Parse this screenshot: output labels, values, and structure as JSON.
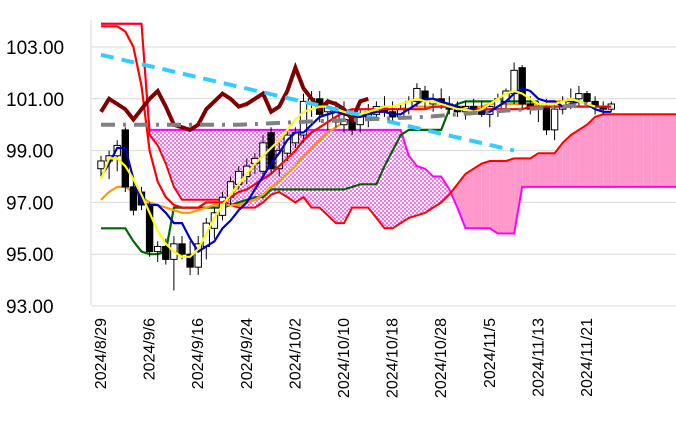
{
  "chart_data": {
    "type": "line",
    "title": "",
    "xlabel": "",
    "ylabel": "",
    "ylim": [
      93,
      104.3
    ],
    "y_ticks": [
      "103.00",
      "101.00",
      "99.00",
      "97.00",
      "95.00",
      "93.00"
    ],
    "y_tick_values": [
      103,
      101,
      99,
      97,
      95,
      93
    ],
    "x_tick_labels": [
      "2024/8/29",
      "2024/9/6",
      "2024/9/16",
      "2024/9/24",
      "2024/10/2",
      "2024/10/10",
      "2024/10/18",
      "2024/10/28",
      "2024/11/5",
      "2024/11/13",
      "2024/11/21"
    ],
    "x_tick_index": [
      0,
      6,
      12,
      18,
      24,
      30,
      36,
      42,
      48,
      54,
      60
    ],
    "grid": "horizontal",
    "legend": "none",
    "colors": {
      "candle_up": "#ffffff",
      "candle_down": "#000000",
      "conversion_line": "#0000cc",
      "base_line": "#ff0000",
      "lagging_line": "#800000",
      "ma_short": "#ffff00",
      "ma_mid": "#ff9900",
      "ma_long": "#006600",
      "trend_line": "#33ccff",
      "resistance_line": "#808080",
      "cloud_bull": "#ff99cc",
      "cloud_border": "#ff00ff"
    },
    "candles": [
      [
        98.3,
        98.8,
        98.0,
        98.6
      ],
      [
        98.6,
        99.0,
        97.9,
        98.8
      ],
      [
        98.8,
        99.4,
        98.2,
        99.2
      ],
      [
        99.8,
        99.9,
        97.4,
        97.6
      ],
      [
        97.6,
        97.9,
        96.5,
        96.7
      ],
      [
        97.4,
        97.6,
        96.7,
        96.9
      ],
      [
        96.9,
        97.0,
        94.9,
        95.1
      ],
      [
        95.1,
        95.5,
        94.7,
        95.3
      ],
      [
        95.3,
        95.6,
        94.6,
        94.8
      ],
      [
        94.8,
        95.7,
        93.6,
        95.4
      ],
      [
        95.4,
        95.7,
        94.8,
        95.0
      ],
      [
        95.0,
        95.5,
        94.2,
        94.5
      ],
      [
        94.5,
        95.7,
        94.2,
        95.4
      ],
      [
        95.3,
        96.4,
        94.8,
        96.2
      ],
      [
        96.0,
        96.8,
        95.6,
        96.6
      ],
      [
        96.5,
        97.4,
        96.3,
        97.2
      ],
      [
        97.2,
        98.0,
        96.9,
        97.8
      ],
      [
        97.7,
        98.4,
        97.5,
        98.2
      ],
      [
        98.0,
        98.7,
        97.7,
        98.4
      ],
      [
        98.5,
        98.9,
        98.1,
        98.7
      ],
      [
        98.2,
        99.6,
        97.9,
        99.3
      ],
      [
        99.7,
        99.9,
        98.1,
        98.3
      ],
      [
        98.3,
        99.3,
        98.0,
        99.0
      ],
      [
        98.9,
        99.8,
        98.6,
        99.6
      ],
      [
        99.3,
        99.9,
        99.1,
        99.7
      ],
      [
        99.6,
        101.2,
        99.3,
        100.9
      ],
      [
        100.8,
        101.3,
        100.3,
        101.0
      ],
      [
        101.0,
        101.3,
        100.1,
        100.4
      ],
      [
        100.5,
        101.0,
        99.8,
        100.7
      ],
      [
        100.1,
        100.9,
        99.9,
        100.6
      ],
      [
        100.0,
        100.9,
        99.7,
        100.2
      ],
      [
        100.2,
        100.6,
        99.6,
        99.8
      ],
      [
        100.0,
        100.6,
        99.7,
        100.4
      ],
      [
        100.3,
        100.8,
        99.9,
        100.5
      ],
      [
        100.4,
        100.9,
        100.2,
        100.7
      ],
      [
        100.7,
        101.1,
        100.3,
        100.5
      ],
      [
        100.5,
        100.9,
        100.1,
        100.3
      ],
      [
        100.3,
        100.8,
        100.2,
        100.6
      ],
      [
        100.6,
        101.1,
        100.4,
        100.9
      ],
      [
        100.9,
        101.6,
        100.7,
        101.4
      ],
      [
        101.3,
        101.5,
        100.6,
        100.9
      ],
      [
        100.8,
        101.2,
        100.5,
        101.0
      ],
      [
        101.0,
        101.4,
        100.6,
        100.8
      ],
      [
        100.8,
        101.1,
        100.4,
        100.6
      ],
      [
        100.6,
        100.9,
        100.3,
        100.5
      ],
      [
        100.5,
        100.9,
        100.2,
        100.7
      ],
      [
        100.7,
        101.0,
        100.4,
        100.6
      ],
      [
        100.6,
        100.9,
        100.3,
        100.4
      ],
      [
        100.4,
        100.8,
        99.9,
        100.7
      ],
      [
        100.6,
        101.2,
        100.3,
        101.0
      ],
      [
        100.9,
        101.4,
        100.5,
        101.3
      ],
      [
        101.2,
        102.4,
        100.8,
        102.1
      ],
      [
        102.2,
        102.3,
        100.6,
        100.8
      ],
      [
        100.8,
        101.1,
        100.4,
        100.6
      ],
      [
        100.6,
        100.9,
        100.1,
        100.7
      ],
      [
        100.7,
        101.0,
        99.6,
        99.8
      ],
      [
        99.8,
        100.8,
        99.4,
        100.6
      ],
      [
        100.6,
        101.1,
        100.4,
        100.9
      ],
      [
        100.9,
        101.4,
        100.6,
        101.0
      ],
      [
        101.0,
        101.5,
        100.7,
        101.2
      ],
      [
        101.2,
        101.3,
        100.7,
        100.9
      ],
      [
        100.9,
        101.1,
        100.4,
        100.7
      ],
      [
        100.7,
        100.9,
        100.4,
        100.6
      ],
      [
        100.6,
        100.9,
        100.5,
        100.8
      ]
    ],
    "conversion_line": [
      98.0,
      98.5,
      99.1,
      99.1,
      97.9,
      97.0,
      96.9,
      96.9,
      96.6,
      96.2,
      96.2,
      95.6,
      95.1,
      95.3,
      95.5,
      96.0,
      96.3,
      96.7,
      97.0,
      97.5,
      98.0,
      98.5,
      98.9,
      99.4,
      99.7,
      99.7,
      100.0,
      100.3,
      100.4,
      100.5,
      100.4,
      100.3,
      100.3,
      100.4,
      100.5,
      100.5,
      100.4,
      100.4,
      100.6,
      100.8,
      101.0,
      101.0,
      100.9,
      100.8,
      100.7,
      100.6,
      100.6,
      100.5,
      100.5,
      100.7,
      100.9,
      101.2,
      101.4,
      101.3,
      101.0,
      100.9,
      100.9,
      100.7,
      100.8,
      100.9,
      100.8,
      100.6,
      100.5,
      100.5
    ],
    "base_line": [
      103.8,
      103.8,
      103.8,
      103.6,
      103.0,
      101.5,
      99.0,
      97.8,
      97.2,
      96.9,
      96.8,
      96.8,
      96.8,
      97.0,
      97.0,
      97.0,
      97.2,
      97.4,
      97.5,
      97.7,
      97.9,
      98.1,
      98.4,
      98.7,
      99.0,
      99.4,
      99.7,
      99.9,
      100.1,
      100.3,
      100.5,
      100.6,
      100.6,
      100.6,
      100.6,
      100.6,
      100.6,
      100.6,
      100.6,
      100.6,
      100.6,
      100.7,
      100.7,
      100.7,
      100.7,
      100.6,
      100.6,
      100.6,
      100.6,
      100.6,
      100.6,
      100.6,
      100.6,
      100.7,
      100.7,
      100.7,
      100.7,
      100.7,
      100.7,
      100.7,
      100.7,
      100.7,
      100.7,
      100.7
    ],
    "lagging_line": [
      100.5,
      101.0,
      100.8,
      100.6,
      100.2,
      100.6,
      101.0,
      101.3,
      100.7,
      100.0,
      99.9,
      99.8,
      100.0,
      100.6,
      100.9,
      101.2,
      101.0,
      100.7,
      100.8,
      101.0,
      101.2,
      100.5,
      100.7,
      101.3,
      102.2,
      101.4,
      101.0,
      100.6,
      100.9,
      100.8,
      100.6,
      100.2,
      100.9,
      101.0
    ],
    "ma_short": [
      97.9,
      98.7,
      98.7,
      98.4,
      97.9,
      97.3,
      96.6,
      95.9,
      95.4,
      95.1,
      94.9,
      94.9,
      95.2,
      95.8,
      96.4,
      96.9,
      97.3,
      97.7,
      98.1,
      98.5,
      98.8,
      99.1,
      99.4,
      99.8,
      100.2,
      100.5,
      100.6,
      100.7,
      100.7,
      100.6,
      100.5,
      100.4,
      100.4,
      100.5,
      100.6,
      100.7,
      100.7,
      100.8,
      100.9,
      101.0,
      100.9,
      100.9,
      100.8,
      100.7,
      100.6,
      100.6,
      100.5,
      100.6,
      100.8,
      101.0,
      101.2,
      101.3,
      101.2,
      101.0,
      100.8,
      100.8,
      100.8,
      100.9,
      101.0,
      100.9,
      100.8,
      100.7
    ],
    "ma_mid": [
      97.1,
      97.4,
      97.6,
      97.6,
      97.4,
      97.2,
      97.0,
      96.9,
      96.8,
      96.7,
      96.6,
      96.6,
      96.7,
      96.8,
      96.9,
      96.9,
      96.9,
      96.9,
      97.0,
      97.1,
      97.3,
      97.6,
      97.8,
      98.1,
      98.4,
      98.8,
      99.1,
      99.4,
      99.7,
      99.9,
      100.1,
      100.2,
      100.3,
      100.4,
      100.5,
      100.6,
      100.6,
      100.6,
      100.7,
      100.7,
      100.7,
      100.7,
      100.7,
      100.7,
      100.7,
      100.7,
      100.7,
      100.7,
      100.8,
      100.8,
      100.8,
      100.8,
      100.8,
      100.8,
      100.8,
      100.8,
      100.9,
      100.9,
      100.9,
      100.9
    ],
    "ma_long": [
      96.0,
      96.0,
      96.0,
      96.0,
      95.5,
      95.1,
      95.0,
      95.0,
      95.1,
      96.8,
      96.8,
      96.8,
      96.8,
      96.8,
      96.8,
      96.8,
      96.9,
      97.0,
      97.1,
      97.2,
      97.2,
      97.5,
      97.5,
      97.5,
      97.5,
      97.5,
      97.5,
      97.5,
      97.5,
      97.5,
      97.5,
      97.6,
      97.7,
      97.7,
      97.7,
      98.4,
      99.0,
      99.6,
      99.8,
      99.8,
      99.8,
      99.8,
      99.8,
      100.6,
      100.8,
      100.9,
      100.9,
      100.9,
      100.9,
      100.9,
      100.9,
      100.9,
      100.9,
      100.9,
      100.9
    ],
    "trend_line": [
      [
        0,
        102.7
      ],
      [
        51,
        99.0
      ]
    ],
    "resistance_line": [
      [
        0,
        100.0
      ],
      [
        9,
        100.0
      ],
      [
        17,
        100.0
      ],
      [
        24,
        100.1
      ],
      [
        32,
        100.2
      ],
      [
        40,
        100.3
      ],
      [
        48,
        100.5
      ],
      [
        57,
        100.7
      ],
      [
        60,
        100.8
      ]
    ],
    "cloud_span_a": [
      103.9,
      103.9,
      103.9,
      103.9,
      103.9,
      103.9,
      99.8,
      99.8,
      99.8,
      99.8,
      99.8,
      99.8,
      99.8,
      99.8,
      99.8,
      99.8,
      99.8,
      99.8,
      99.8,
      99.8,
      99.8,
      99.8,
      99.8,
      99.8,
      99.8,
      99.8,
      99.8,
      99.8,
      99.8,
      99.8,
      99.8,
      99.8,
      99.8,
      99.8,
      99.8,
      99.8,
      99.8,
      99.8,
      98.8,
      98.4,
      98.3,
      98.0,
      98.0,
      97.5,
      96.8,
      96.0,
      96.0,
      96.0,
      96.0,
      95.8,
      95.8,
      95.8,
      97.6,
      97.6,
      97.6,
      97.6,
      97.6,
      97.6,
      97.6,
      97.6,
      97.6,
      97.6,
      97.6,
      97.6,
      97.6,
      97.6,
      97.6,
      97.6,
      97.6,
      97.6,
      97.6,
      97.6,
      97.6,
      97.6,
      97.6
    ],
    "cloud_span_b": [
      103.9,
      103.9,
      103.9,
      103.9,
      103.9,
      103.9,
      99.6,
      99.2,
      98.5,
      97.6,
      97.1,
      97.1,
      97.1,
      97.1,
      97.1,
      97.1,
      96.9,
      96.8,
      96.8,
      96.8,
      97.0,
      97.3,
      97.4,
      97.2,
      97.0,
      97.2,
      96.8,
      96.8,
      96.5,
      96.2,
      96.2,
      96.8,
      96.8,
      96.8,
      96.4,
      96.0,
      96.0,
      96.2,
      96.4,
      96.5,
      96.6,
      96.8,
      97.0,
      97.3,
      97.7,
      98.1,
      98.3,
      98.5,
      98.6,
      98.6,
      98.6,
      98.7,
      98.7,
      98.7,
      98.9,
      98.9,
      98.9,
      99.3,
      99.6,
      99.8,
      100.0,
      100.3,
      100.4,
      100.4,
      100.4,
      100.4,
      100.4,
      100.4,
      100.4,
      100.4,
      100.4,
      100.4,
      100.4,
      100.4,
      100.4
    ]
  }
}
